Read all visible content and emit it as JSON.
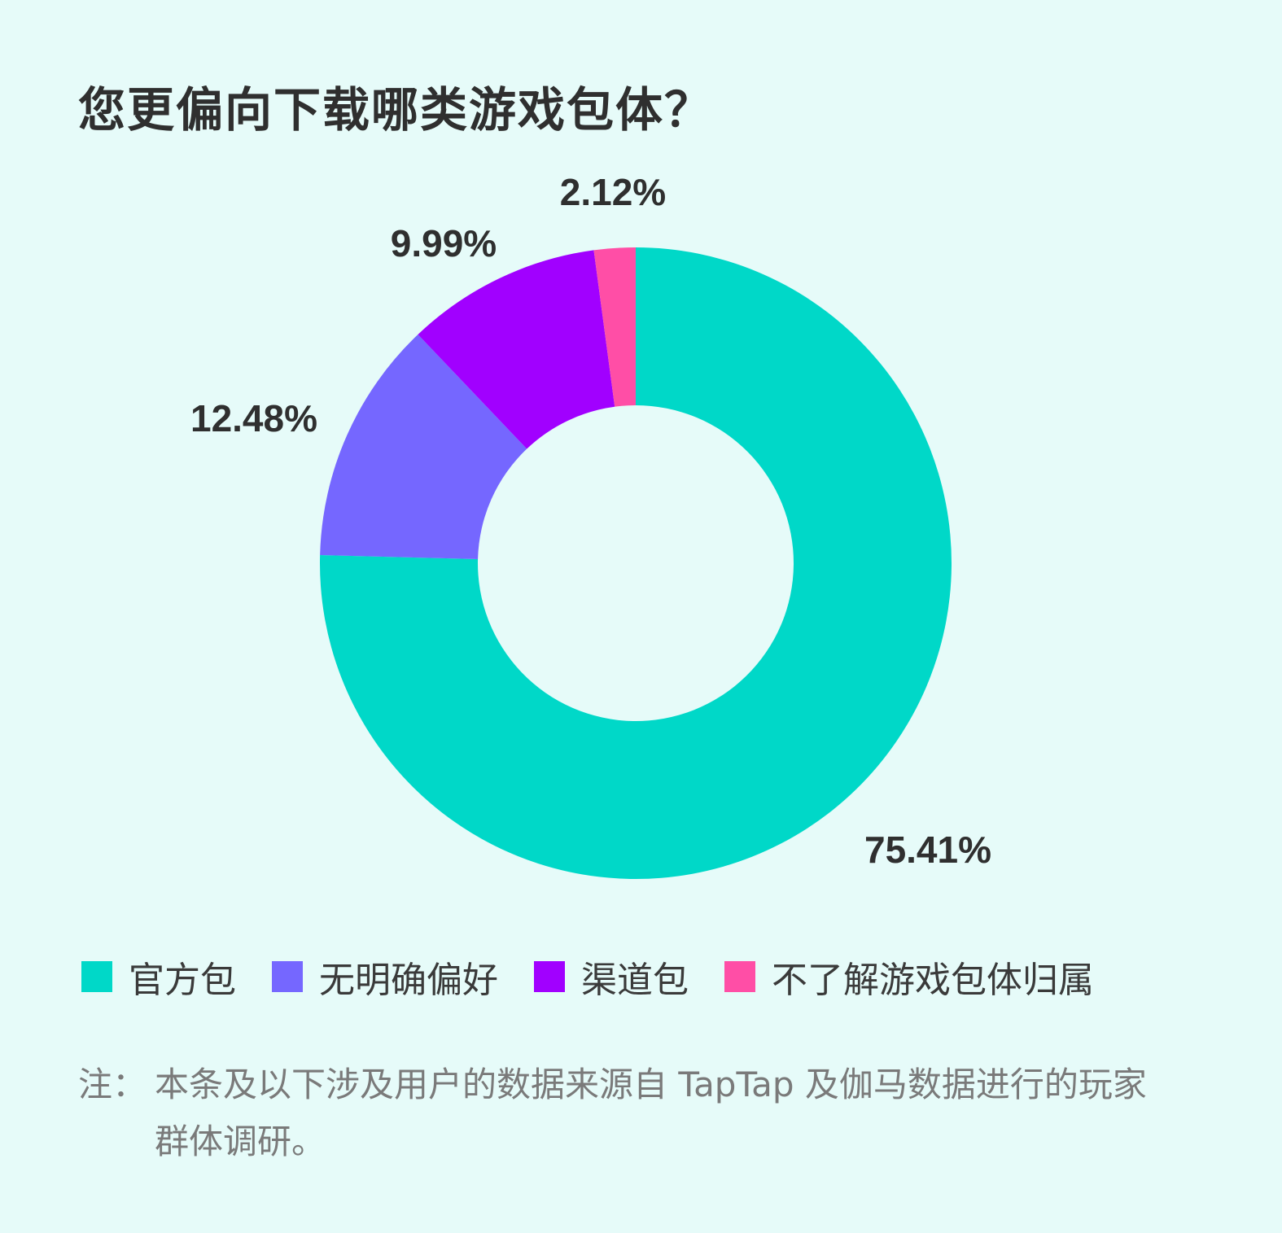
{
  "chart_data": {
    "type": "pie",
    "title": "您更偏向下载哪类游戏包体？",
    "categories": [
      "官方包",
      "无明确偏好",
      "渠道包",
      "不了解游戏包体归属"
    ],
    "values": [
      75.41,
      12.48,
      9.99,
      2.12
    ],
    "value_labels": [
      "75.41%",
      "12.48%",
      "9.99%",
      "2.12%"
    ],
    "colors": [
      "#00d8c8",
      "#7567ff",
      "#a100ff",
      "#ff4ea6"
    ],
    "donut": true,
    "legend_position": "bottom"
  },
  "note": {
    "prefix": "注：",
    "text": "本条及以下涉及用户的数据来源自 TapTap 及伽马数据进行的玩家群体调研。"
  }
}
